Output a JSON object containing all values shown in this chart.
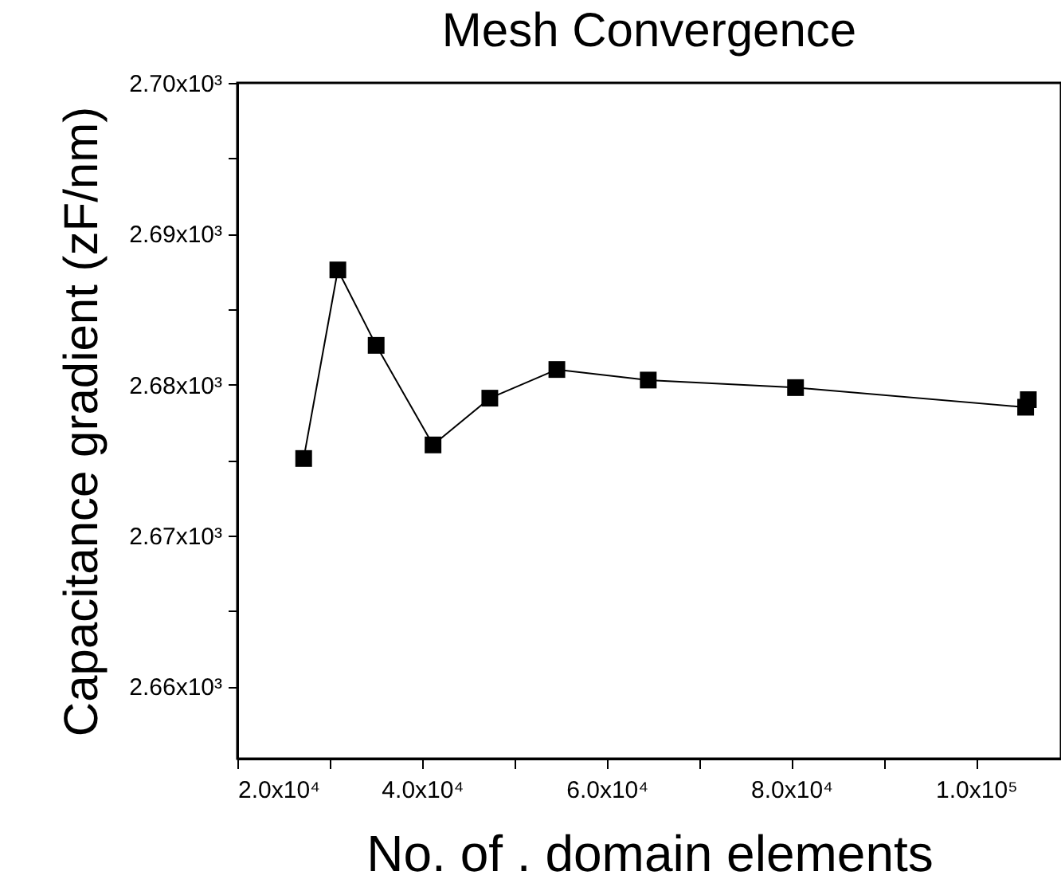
{
  "chart_data": {
    "type": "line",
    "title": "Mesh Convergence",
    "xlabel": "No. of . domain elements",
    "ylabel": "Capacitance gradient (zF/nm)",
    "x": [
      27180,
      30880,
      35030,
      41190,
      47340,
      54600,
      64500,
      80450,
      105370,
      105660
    ],
    "series": [
      {
        "color": "#000000",
        "values": [
          2675.1,
          2687.6,
          2682.6,
          2676.0,
          2679.1,
          2681.0,
          2680.3,
          2679.8,
          2678.5,
          2679.0
        ]
      }
    ],
    "marker": "square",
    "grid": false,
    "xlim": [
      20000,
      109200
    ],
    "xticks": [
      {
        "value": 20000,
        "label": "2.0x10⁴"
      },
      {
        "value": 30000,
        "label": null
      },
      {
        "value": 40000,
        "label": "4.0x10⁴"
      },
      {
        "value": 50000,
        "label": null
      },
      {
        "value": 60000,
        "label": "6.0x10⁴"
      },
      {
        "value": 70000,
        "label": null
      },
      {
        "value": 80000,
        "label": "8.0x10⁴"
      },
      {
        "value": 90000,
        "label": null
      },
      {
        "value": 100000,
        "label": "1.0x10⁵"
      }
    ],
    "ylim": [
      2655.2,
      2700
    ],
    "yticks": [
      {
        "value": 2660,
        "label": "2.66x10³"
      },
      {
        "value": 2665,
        "label": null
      },
      {
        "value": 2670,
        "label": "2.67x10³"
      },
      {
        "value": 2675,
        "label": null
      },
      {
        "value": 2680,
        "label": "2.68x10³"
      },
      {
        "value": 2685,
        "label": null
      },
      {
        "value": 2690,
        "label": "2.69x10³"
      },
      {
        "value": 2695,
        "label": null
      },
      {
        "value": 2700,
        "label": "2.70x10³"
      }
    ]
  }
}
